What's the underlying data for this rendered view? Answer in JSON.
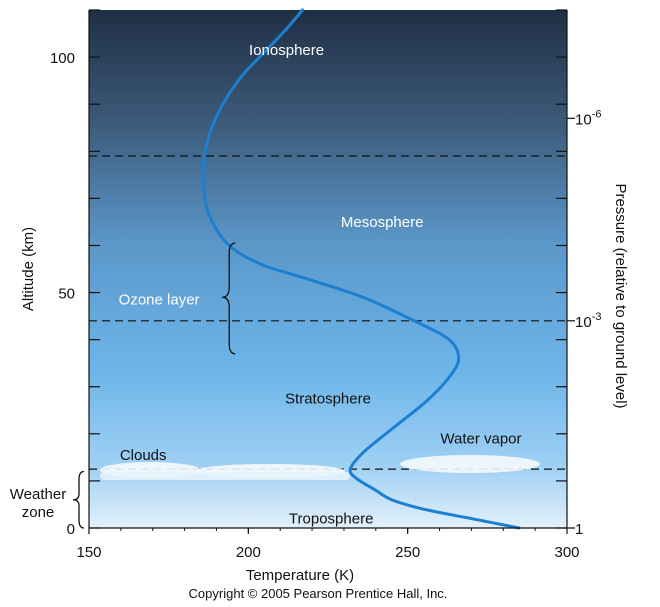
{
  "chart_data": {
    "type": "line",
    "title": "",
    "xlabel": "Temperature (K)",
    "ylabel": "Altitude (km)",
    "y2label": "Pressure (relative to ground level)",
    "xlim": [
      150,
      300
    ],
    "ylim": [
      0,
      110
    ],
    "x_ticks": [
      "150",
      "200",
      "250",
      "300"
    ],
    "y_ticks": [
      "0",
      "50",
      "100"
    ],
    "pressure_ticks": [
      {
        "base": "1",
        "exp": "",
        "altitude": 0
      },
      {
        "base": "10",
        "exp": "-3",
        "altitude": 44
      },
      {
        "base": "10",
        "exp": "-6",
        "altitude": 87
      }
    ],
    "layer_boundaries_km": [
      12.5,
      44,
      79
    ],
    "series": [
      {
        "x": [
          285,
          270,
          255,
          245,
          240,
          234,
          232,
          236,
          245,
          256,
          263,
          266,
          263,
          252,
          236,
          218,
          204,
          194,
          188,
          186,
          186,
          188,
          192,
          198,
          205,
          212,
          217
        ],
        "y": [
          0,
          2,
          4,
          6,
          8,
          10.5,
          12.5,
          16,
          21,
          27,
          32,
          36,
          40,
          44,
          49,
          53,
          56,
          60,
          66,
          72,
          78,
          84,
          90,
          96,
          101,
          106,
          110
        ],
        "color": "#1d7fd0"
      }
    ],
    "annotations": [
      {
        "text": "Ionosphere",
        "temp": 212,
        "alt": 101.5,
        "tone": "light"
      },
      {
        "text": "Mesosphere",
        "temp": 242,
        "alt": 65,
        "tone": "light"
      },
      {
        "text": "Ozone layer",
        "temp": 172,
        "alt": 48.5,
        "tone": "light"
      },
      {
        "text": "Stratosphere",
        "temp": 225,
        "alt": 27.5,
        "tone": "dark"
      },
      {
        "text": "Clouds",
        "temp": 167,
        "alt": 15.5,
        "tone": "dark"
      },
      {
        "text": "Water vapor",
        "temp": 273,
        "alt": 19,
        "tone": "dark"
      },
      {
        "text": "Troposphere",
        "temp": 226,
        "alt": 2,
        "tone": "dark"
      }
    ],
    "weather_zone_label": [
      "Weather",
      "zone"
    ],
    "copyright": "Copyright © 2005 Pearson Prentice Hall, Inc."
  }
}
